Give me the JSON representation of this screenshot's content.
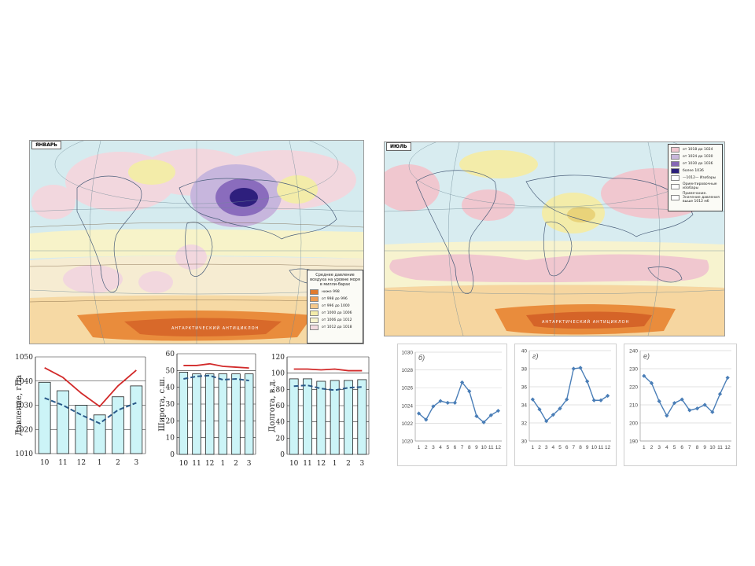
{
  "maps": {
    "january": {
      "title": "ЯНВАРЬ",
      "legend_title": "Среднее давление воздуха на уровне моря в милли-барах",
      "legend": [
        {
          "label": "ниже 998",
          "color": "#e07b2f"
        },
        {
          "label": "от 998 до 996",
          "color": "#ef9e55"
        },
        {
          "label": "от 996 до 1000",
          "color": "#f6c98b"
        },
        {
          "label": "от 1000 до 1006",
          "color": "#f3ecaa"
        },
        {
          "label": "от 1006 до 1012",
          "color": "#f7f4cd"
        },
        {
          "label": "от 1012 до 1018",
          "color": "#f2dbe0"
        }
      ]
    },
    "july": {
      "title": "ИЮЛЬ",
      "legend": [
        {
          "label": "от 1018 до 1024",
          "color": "#f0c7cf"
        },
        {
          "label": "от 1024 до 1030",
          "color": "#c9b8dc"
        },
        {
          "label": "от 1030 до 1036",
          "color": "#8566b5"
        },
        {
          "label": "более 1036",
          "color": "#2b1f7a"
        },
        {
          "label": "—1012— Изобары",
          "color": "#ffffff"
        },
        {
          "label": "Ориентировочные изобары",
          "color": "#ffffff"
        },
        {
          "label": "Примечание. Значение давления выше 1012 мб",
          "color": "#ffffff"
        }
      ]
    }
  },
  "chart_data": [
    {
      "type": "bar",
      "categories": [
        "10",
        "11",
        "12",
        "1",
        "2",
        "3"
      ],
      "ylabel": "Давление, гПа",
      "ylim": [
        1010,
        1050
      ],
      "yticks": [
        1010,
        1020,
        1030,
        1040,
        1050
      ],
      "series": [
        {
          "kind": "bar",
          "values": [
            1039.5,
            1036,
            1030,
            1026,
            1033.5,
            1038
          ]
        },
        {
          "kind": "line",
          "color": "#d22a2a",
          "values": [
            1045.5,
            1041.5,
            1035,
            1029.5,
            1038,
            1044.5
          ]
        },
        {
          "kind": "dashed",
          "color": "#2a5a8a",
          "values": [
            1033,
            1030,
            1026,
            1022.5,
            1028,
            1031
          ]
        }
      ]
    },
    {
      "type": "bar",
      "categories": [
        "10",
        "11",
        "12",
        "1",
        "2",
        "3"
      ],
      "ylabel": "Широта, с.ш.",
      "ylim": [
        0,
        60
      ],
      "yticks": [
        0,
        10,
        20,
        30,
        40,
        50,
        60
      ],
      "series": [
        {
          "kind": "bar",
          "values": [
            49,
            48,
            48,
            48,
            48,
            48
          ]
        },
        {
          "kind": "line",
          "color": "#d22a2a",
          "values": [
            53,
            53,
            54,
            52.5,
            52,
            51.5
          ]
        },
        {
          "kind": "dashed",
          "color": "#2a5a8a",
          "values": [
            45,
            46.5,
            47,
            44.5,
            45,
            44
          ]
        }
      ]
    },
    {
      "type": "bar",
      "categories": [
        "10",
        "11",
        "12",
        "1",
        "2",
        "3"
      ],
      "ylabel": "Долгота, в.д.",
      "ylim": [
        0,
        120
      ],
      "yticks": [
        0,
        20,
        40,
        60,
        80,
        100,
        120
      ],
      "series": [
        {
          "kind": "bar",
          "values": [
            93,
            93,
            90,
            91,
            91,
            92
          ]
        },
        {
          "kind": "line",
          "color": "#d22a2a",
          "values": [
            105,
            105,
            104,
            105,
            103,
            103
          ]
        },
        {
          "kind": "dashed",
          "color": "#2a5a8a",
          "values": [
            84,
            85,
            81,
            79,
            82,
            83
          ]
        }
      ]
    },
    {
      "type": "line",
      "label": "б)",
      "categories": [
        "1",
        "2",
        "3",
        "4",
        "5",
        "6",
        "7",
        "8",
        "9",
        "10",
        "11",
        "12"
      ],
      "ylim": [
        1020,
        1030
      ],
      "yticks": [
        1020,
        1022,
        1024,
        1026,
        1028,
        1030
      ],
      "values": [
        1023.1,
        1022.4,
        1023.9,
        1024.5,
        1024.3,
        1024.3,
        1026.6,
        1025.6,
        1022.8,
        1022.1,
        1022.9,
        1023.4
      ]
    },
    {
      "type": "line",
      "label": "г)",
      "categories": [
        "1",
        "2",
        "3",
        "4",
        "5",
        "6",
        "7",
        "8",
        "9",
        "10",
        "11",
        "12"
      ],
      "ylim": [
        30,
        40
      ],
      "yticks": [
        30,
        32,
        34,
        36,
        38,
        40
      ],
      "values": [
        34.6,
        33.5,
        32.2,
        32.9,
        33.6,
        34.6,
        38,
        38.1,
        36.6,
        34.5,
        34.5,
        35
      ]
    },
    {
      "type": "line",
      "label": "е)",
      "categories": [
        "1",
        "2",
        "3",
        "4",
        "5",
        "6",
        "7",
        "8",
        "9",
        "10",
        "11",
        "12"
      ],
      "ylim": [
        190,
        240
      ],
      "yticks": [
        190,
        200,
        210,
        220,
        230,
        240
      ],
      "values": [
        226,
        222,
        212,
        204,
        211,
        213,
        207,
        208,
        210,
        206,
        216,
        225
      ]
    }
  ]
}
